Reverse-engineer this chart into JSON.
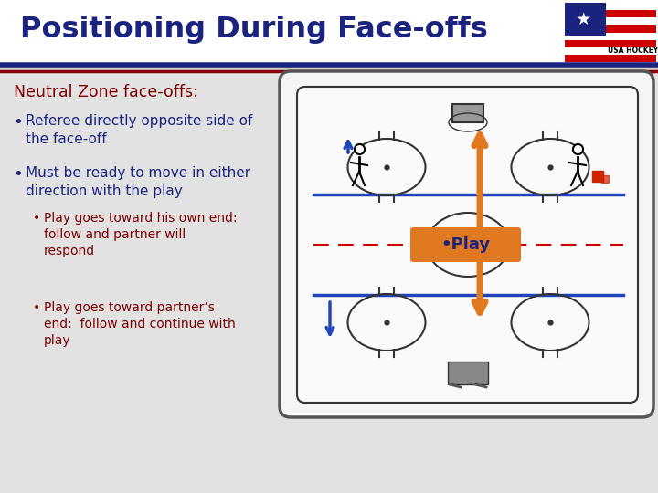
{
  "title": "Positioning During Face-offs",
  "title_color": "#1a237e",
  "bg_color": "#d4d4d4",
  "content_bg": "#e8e8e8",
  "header_bg": "#ffffff",
  "section_header": "Neutral Zone face-offs:",
  "section_header_color": "#7b0000",
  "bullet1_main": "Referee directly opposite side of\nthe face-off",
  "bullet2_main": "Must be ready to move in either\ndirection with the play",
  "bullet2_sub1": "Play goes toward his own end:\nfollow and partner will\nrespond",
  "bullet2_sub2": "Play goes toward partner’s\nend:  follow and continue with\nplay",
  "bullet_color": "#1a237e",
  "sub_bullet_color": "#7b0000",
  "divider_color1": "#1a237e",
  "divider_color2": "#8b0000",
  "play_label": "•Play",
  "play_box_color": "#e07820",
  "play_text_color": "#1a237e",
  "arrow_blue_color": "#2244bb",
  "arrow_orange_color": "#e07820",
  "rink_bg": "#ffffff",
  "watermark_color": "#c8a882",
  "watermark_alpha": 0.4
}
